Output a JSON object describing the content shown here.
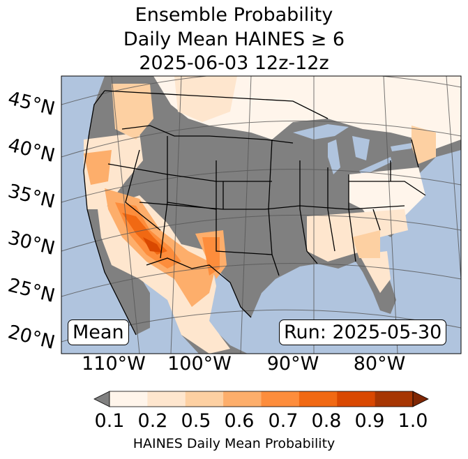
{
  "title": {
    "line1": "Ensemble Probability",
    "line2": "Daily Mean HAINES ≥ 6",
    "line3": "2025-06-03 12z-12z"
  },
  "map": {
    "lat_labels": [
      "45°N",
      "40°N",
      "35°N",
      "30°N",
      "25°N",
      "20°N"
    ],
    "lon_labels": [
      "110°W",
      "100°W",
      "90°W",
      "80°W"
    ],
    "mean_label": "Mean",
    "run_label": "Run: 2025-05-30"
  },
  "colorbar": {
    "label": "HAINES Daily Mean Probability",
    "ticks": [
      "0.1",
      "0.2",
      "0.5",
      "0.6",
      "0.7",
      "0.8",
      "0.9",
      "1.0"
    ],
    "colors": [
      "#fff5eb",
      "#fee6ce",
      "#fdd0a2",
      "#fdae6b",
      "#fd8d3c",
      "#f16913",
      "#d94801",
      "#a63603"
    ],
    "under_color": "#808080",
    "over_color": "#7f2704"
  },
  "colors": {
    "ocean": "#b0c4de",
    "land_low": "#808080",
    "lake": "#b0c4de"
  }
}
